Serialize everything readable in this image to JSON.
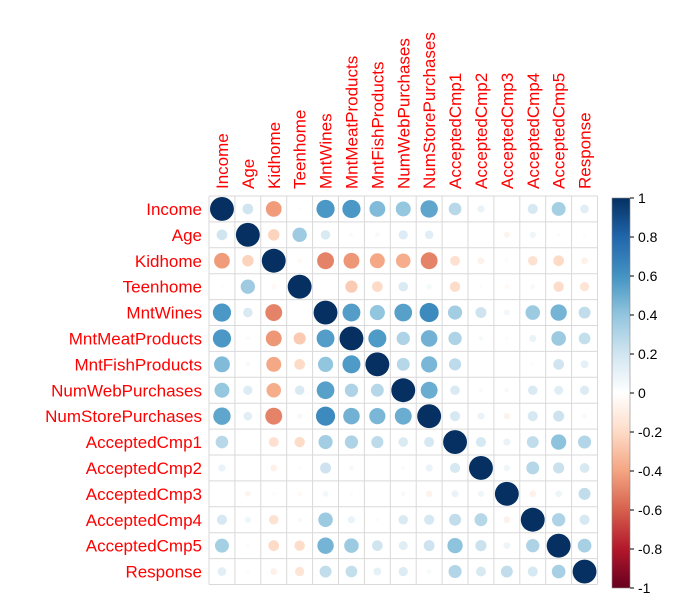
{
  "chart_data": {
    "type": "heatmap",
    "method": "circle",
    "label_color": "#FF0000",
    "variables": [
      "Income",
      "Age",
      "Kidhome",
      "Teenhome",
      "MntWines",
      "MntMeatProducts",
      "MntFishProducts",
      "NumWebPurchases",
      "NumStorePurchases",
      "AcceptedCmp1",
      "AcceptedCmp2",
      "AcceptedCmp3",
      "AcceptedCmp4",
      "AcceptedCmp5",
      "Response"
    ],
    "matrix": [
      [
        1.0,
        0.2,
        -0.43,
        0.02,
        0.58,
        0.58,
        0.44,
        0.39,
        0.53,
        0.28,
        0.09,
        -0.01,
        0.18,
        0.34,
        0.13
      ],
      [
        0.2,
        1.0,
        -0.23,
        0.36,
        0.16,
        0.03,
        0.04,
        0.15,
        0.13,
        -0.01,
        0.01,
        -0.06,
        0.07,
        -0.02,
        -0.02
      ],
      [
        -0.43,
        -0.23,
        1.0,
        -0.04,
        -0.5,
        -0.44,
        -0.39,
        -0.37,
        -0.5,
        -0.17,
        -0.08,
        0.02,
        -0.16,
        -0.2,
        -0.08
      ],
      [
        0.02,
        0.36,
        -0.04,
        1.0,
        0.0,
        -0.26,
        -0.2,
        0.16,
        0.05,
        -0.19,
        -0.02,
        -0.04,
        0.04,
        -0.19,
        -0.15
      ],
      [
        0.58,
        0.16,
        -0.5,
        0.0,
        1.0,
        0.56,
        0.4,
        0.55,
        0.64,
        0.35,
        0.21,
        0.06,
        0.37,
        0.47,
        0.25
      ],
      [
        0.58,
        0.03,
        -0.44,
        -0.26,
        0.56,
        1.0,
        0.57,
        0.31,
        0.48,
        0.31,
        0.04,
        0.02,
        0.09,
        0.37,
        0.24
      ],
      [
        0.44,
        0.04,
        -0.39,
        -0.2,
        0.4,
        0.57,
        1.0,
        0.29,
        0.46,
        0.26,
        0.0,
        0.0,
        0.02,
        0.2,
        0.11
      ],
      [
        0.39,
        0.15,
        -0.37,
        0.16,
        0.55,
        0.31,
        0.29,
        1.0,
        0.5,
        0.16,
        0.03,
        0.04,
        0.16,
        0.14,
        0.15
      ],
      [
        0.53,
        0.13,
        -0.5,
        0.05,
        0.64,
        0.48,
        0.46,
        0.5,
        1.0,
        0.18,
        0.09,
        -0.07,
        0.18,
        0.21,
        0.04
      ],
      [
        0.28,
        -0.01,
        -0.17,
        -0.19,
        0.35,
        0.31,
        0.26,
        0.16,
        0.18,
        1.0,
        0.18,
        0.09,
        0.25,
        0.41,
        0.3
      ],
      [
        0.09,
        0.01,
        -0.08,
        -0.02,
        0.21,
        0.04,
        0.0,
        0.03,
        0.09,
        0.18,
        1.0,
        0.07,
        0.29,
        0.22,
        0.17
      ],
      [
        -0.01,
        -0.06,
        0.02,
        -0.04,
        0.06,
        0.02,
        0.0,
        0.04,
        -0.07,
        0.09,
        0.07,
        1.0,
        -0.08,
        0.08,
        0.25
      ],
      [
        0.18,
        0.07,
        -0.16,
        0.04,
        0.37,
        0.09,
        0.02,
        0.16,
        0.18,
        0.25,
        0.29,
        -0.08,
        1.0,
        0.31,
        0.18
      ],
      [
        0.34,
        -0.02,
        -0.2,
        -0.19,
        0.47,
        0.37,
        0.2,
        0.14,
        0.21,
        0.41,
        0.22,
        0.08,
        0.31,
        1.0,
        0.33
      ],
      [
        0.13,
        -0.02,
        -0.08,
        -0.15,
        0.25,
        0.24,
        0.11,
        0.15,
        0.04,
        0.3,
        0.17,
        0.25,
        0.18,
        0.33,
        1.0
      ]
    ],
    "colorbar": {
      "range": [
        -1,
        1
      ],
      "ticks": [
        "1",
        "0.8",
        "0.6",
        "0.4",
        "0.2",
        "0",
        "-0.2",
        "-0.4",
        "-0.6",
        "-0.8",
        "-1"
      ],
      "colors": [
        "#67001F",
        "#B2182B",
        "#D6604D",
        "#F4A582",
        "#FDDBC7",
        "#FFFFFF",
        "#D1E5F0",
        "#92C5DE",
        "#4393C3",
        "#2166AC",
        "#053061"
      ]
    },
    "grid": true
  }
}
